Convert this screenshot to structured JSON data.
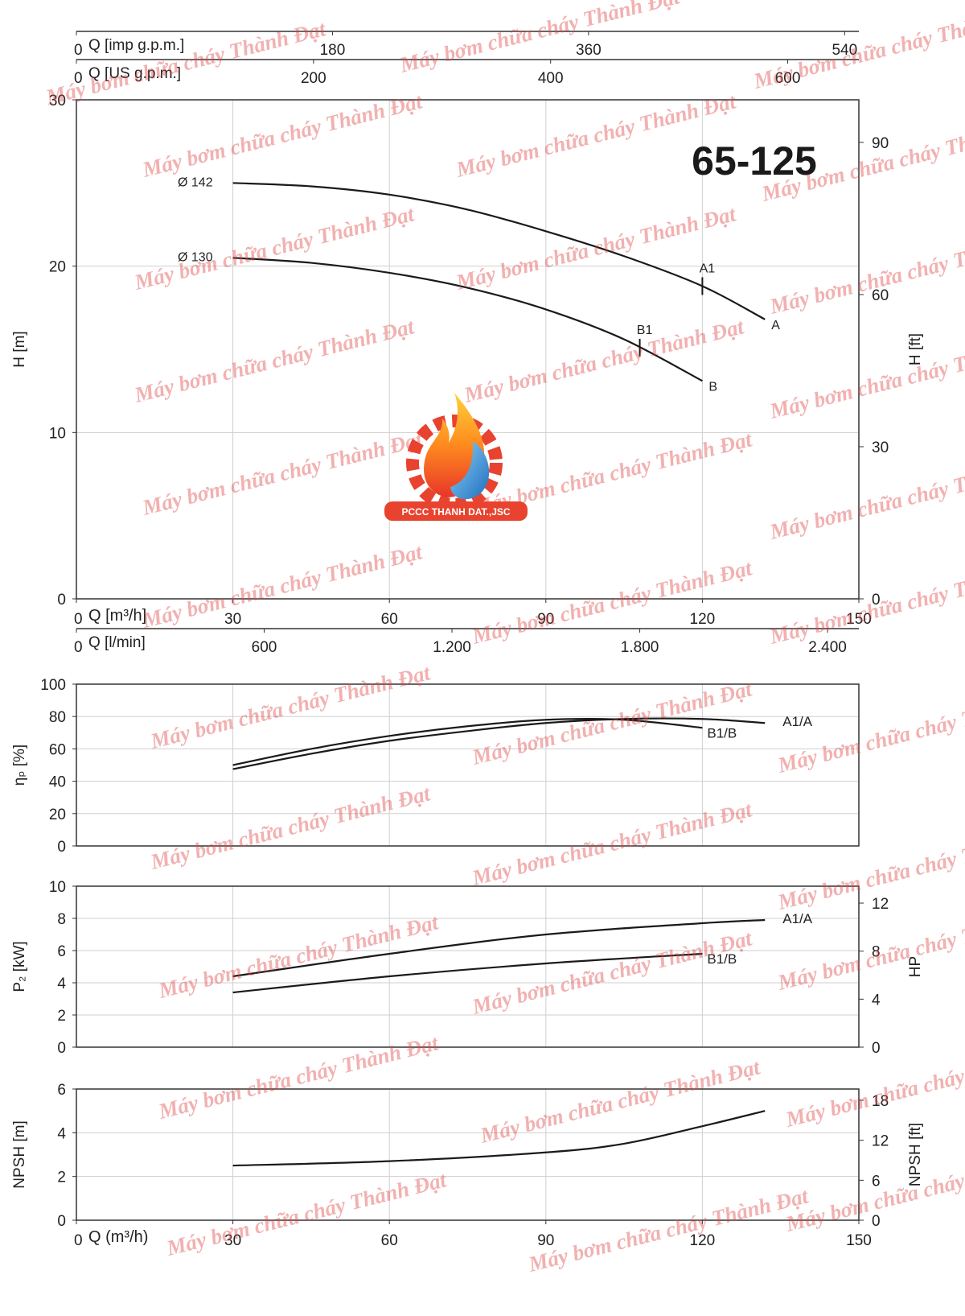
{
  "watermark": "Máy bơm chữa cháy Thành Đạt",
  "logo_text": "PCCC THANH DAT.,JSC",
  "chart_data": [
    {
      "type": "line",
      "title": "65-125",
      "xlabel": "Q [m³/h]",
      "xlim": [
        0,
        150
      ],
      "xticks": [
        0,
        30,
        60,
        90,
        120,
        150
      ],
      "ylabel": "H [m]",
      "ylim": [
        0,
        30
      ],
      "yticks": [
        0,
        10,
        20,
        30
      ],
      "y2label": "H [ft]",
      "y2lim": [
        0,
        98.4
      ],
      "y2ticks": [
        0,
        30,
        60,
        90
      ],
      "grid": true,
      "name_position": "start",
      "extra_x_axes": [
        {
          "label": "Q [imp g.p.m.]",
          "lim": [
            0,
            550
          ],
          "ticks": [
            0,
            180,
            360,
            540
          ]
        },
        {
          "label": "Q [US g.p.m.]",
          "lim": [
            0,
            660
          ],
          "ticks": [
            0,
            200,
            400,
            600
          ]
        },
        {
          "label": "Q [l/min]",
          "lim": [
            0,
            2500
          ],
          "ticks": [
            0,
            600,
            {
              "value": 1200,
              "label": "1.200"
            },
            {
              "value": 1800,
              "label": "1.800"
            },
            {
              "value": 2400,
              "label": "2.400"
            }
          ]
        }
      ],
      "series": [
        {
          "name": "Ø 142",
          "end_label": "A",
          "point_label": "A1",
          "point_x": 120,
          "color": "#1a1a1a",
          "x": [
            30,
            45,
            60,
            75,
            90,
            105,
            120,
            132
          ],
          "values": [
            25.0,
            24.8,
            24.3,
            23.4,
            22.1,
            20.6,
            18.8,
            16.8
          ]
        },
        {
          "name": "Ø 130",
          "end_label": "B",
          "point_label": "B1",
          "point_x": 108,
          "color": "#1a1a1a",
          "x": [
            30,
            45,
            60,
            75,
            90,
            105,
            120
          ],
          "values": [
            20.5,
            20.2,
            19.6,
            18.7,
            17.4,
            15.6,
            13.1
          ]
        }
      ]
    },
    {
      "type": "line",
      "xlim": [
        0,
        150
      ],
      "xticks": [
        0,
        30,
        60,
        90,
        120,
        150
      ],
      "xtick_labels": false,
      "ylabel": "ηₚ [%]",
      "ylim": [
        0,
        100
      ],
      "yticks": [
        0,
        20,
        40,
        60,
        80,
        100
      ],
      "grid": true,
      "name_position": "end",
      "series": [
        {
          "name": "A1/A",
          "color": "#1a1a1a",
          "x": [
            30,
            45,
            60,
            75,
            90,
            105,
            120,
            132
          ],
          "values": [
            47.5,
            57,
            65,
            71,
            76,
            78.5,
            78.5,
            76
          ]
        },
        {
          "name": "B1/B",
          "color": "#1a1a1a",
          "x": [
            30,
            45,
            60,
            75,
            90,
            105,
            120
          ],
          "values": [
            50,
            60,
            68,
            74,
            78,
            78,
            73
          ]
        }
      ]
    },
    {
      "type": "line",
      "xlim": [
        0,
        150
      ],
      "xticks": [
        0,
        30,
        60,
        90,
        120,
        150
      ],
      "xtick_labels": false,
      "ylabel": "P₂ [kW]",
      "ylim": [
        0,
        10
      ],
      "yticks": [
        0,
        2,
        4,
        6,
        8,
        10
      ],
      "y2label": "HP",
      "y2lim": [
        0,
        13.41
      ],
      "y2ticks": [
        0,
        4,
        8,
        12
      ],
      "grid": true,
      "name_position": "end",
      "series": [
        {
          "name": "A1/A",
          "color": "#1a1a1a",
          "x": [
            30,
            60,
            90,
            120,
            132
          ],
          "values": [
            4.4,
            5.8,
            7.0,
            7.7,
            7.9
          ]
        },
        {
          "name": "B1/B",
          "color": "#1a1a1a",
          "x": [
            30,
            60,
            90,
            120
          ],
          "values": [
            3.4,
            4.4,
            5.2,
            5.8
          ]
        }
      ]
    },
    {
      "type": "line",
      "xlabel": "Q (m³/h)",
      "xlim": [
        0,
        150
      ],
      "xticks": [
        0,
        30,
        60,
        90,
        120,
        150
      ],
      "ylabel": "NPSH [m]",
      "ylim": [
        0,
        6
      ],
      "yticks": [
        0,
        2,
        4,
        6
      ],
      "y2label": "NPSH [ft]",
      "y2lim": [
        0,
        19.69
      ],
      "y2ticks": [
        0,
        6,
        12,
        18
      ],
      "grid": true,
      "series": [
        {
          "color": "#1a1a1a",
          "x": [
            30,
            60,
            90,
            105,
            120,
            132
          ],
          "values": [
            2.5,
            2.7,
            3.1,
            3.5,
            4.3,
            5.0
          ]
        }
      ]
    }
  ]
}
